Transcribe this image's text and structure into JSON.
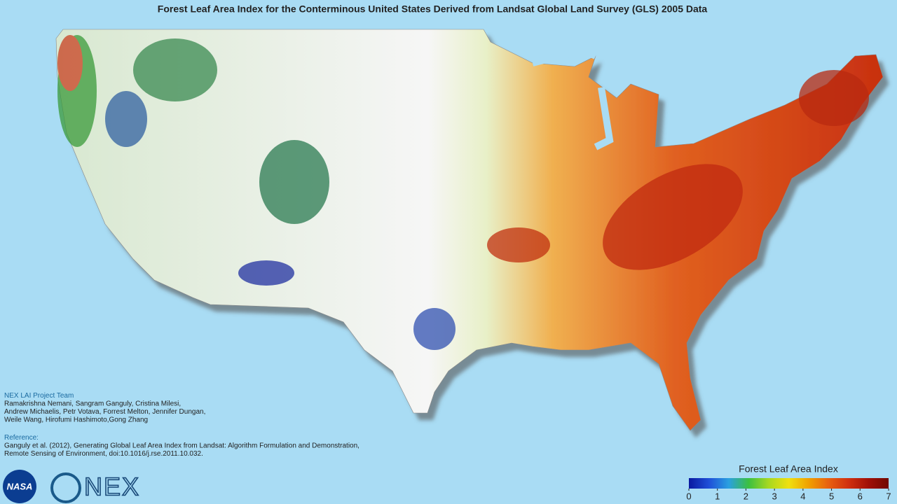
{
  "title": "Forest Leaf Area Index for the Conterminous United States Derived from Landsat Global Land Survey (GLS) 2005 Data",
  "credits": {
    "heading": "NEX LAI Project Team",
    "lines": [
      "Ramakrishna Nemani, Sangram Ganguly, Cristina Milesi,",
      "Andrew Michaelis, Petr Votava, Forrest Melton, Jennifer Dungan,",
      "Weile Wang, Hirofumi Hashimoto,Gong Zhang"
    ]
  },
  "reference": {
    "heading": "Reference:",
    "lines": [
      "Ganguly et al. (2012), Generating Global Leaf Area Index from Landsat: Algorithm Formulation and Demonstration,",
      "Remote Sensing of Environment, doi:10.1016/j.rse.2011.10.032."
    ]
  },
  "logos": {
    "nasa": "NASA",
    "nex": "NEX"
  },
  "legend": {
    "title": "Forest Leaf Area Index",
    "range": [
      0,
      7
    ],
    "ticks": [
      0,
      1,
      2,
      3,
      4,
      5,
      6,
      7
    ],
    "colors": [
      "#0a1aa0",
      "#1f4fd8",
      "#2aa0e0",
      "#3cc040",
      "#a8d820",
      "#f0e010",
      "#f0a000",
      "#e86010",
      "#d03010",
      "#a01008",
      "#700800"
    ]
  }
}
